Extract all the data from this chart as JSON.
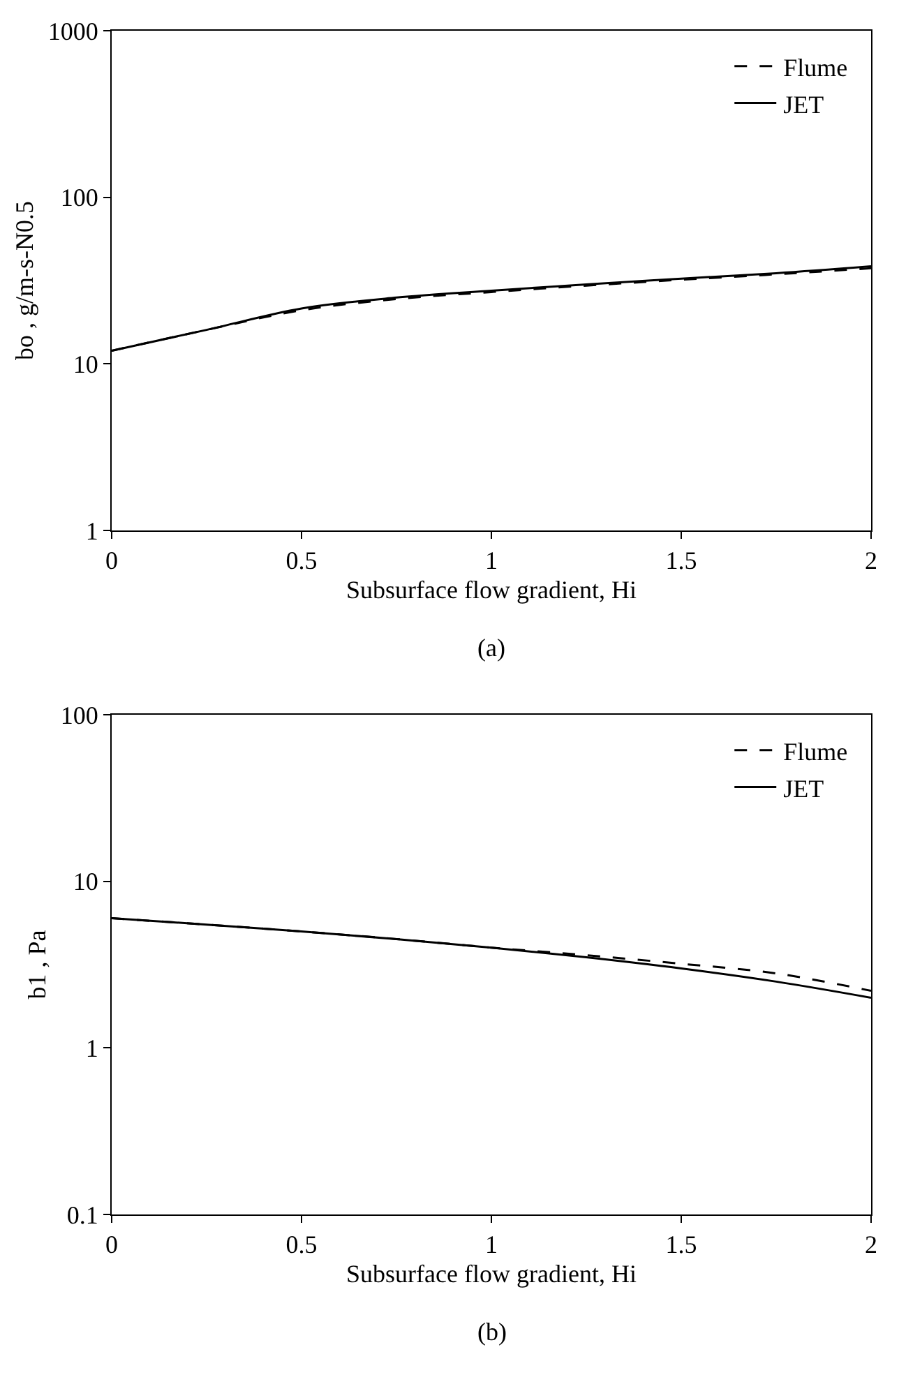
{
  "chart_data": [
    {
      "type": "line",
      "xlabel": "Subsurface flow gradient, Hi",
      "ylabel": "bo , g/m-s-N0.5",
      "annotations": [
        "(a)"
      ],
      "log": true,
      "grid": false,
      "legend": "top right",
      "xlim": [
        0,
        2
      ],
      "xticks": [
        0,
        0.5,
        1,
        1.5,
        2
      ],
      "ylim": [
        1,
        1000
      ],
      "yticks": [
        1,
        10,
        100,
        1000
      ],
      "x": [
        0,
        0.25,
        0.5,
        0.75,
        1,
        1.25,
        1.5,
        1.75,
        2
      ],
      "series": [
        {
          "name": "Flume",
          "color": "#000000",
          "line_style": "dashed",
          "values": [
            12,
            16,
            21,
            24.5,
            27,
            29.5,
            32,
            34.5,
            37.5
          ]
        },
        {
          "name": "JET",
          "color": "#000000",
          "line_style": "solid",
          "values": [
            12,
            16,
            21.5,
            25,
            27.5,
            30,
            32.5,
            35,
            38.5
          ]
        }
      ]
    },
    {
      "type": "line",
      "xlabel": "Subsurface flow gradient, Hi",
      "ylabel": "b1 , Pa",
      "annotations": [
        "(b)"
      ],
      "log": true,
      "grid": false,
      "legend": "top right",
      "xlim": [
        0,
        2
      ],
      "xticks": [
        0,
        0.5,
        1,
        1.5,
        2
      ],
      "ylim": [
        0.1,
        100
      ],
      "yticks": [
        0.1,
        1,
        10,
        100
      ],
      "x": [
        0,
        0.25,
        0.5,
        0.75,
        1,
        1.25,
        1.5,
        1.75,
        2
      ],
      "series": [
        {
          "name": "Flume",
          "color": "#000000",
          "line_style": "dashed",
          "values": [
            6,
            5.5,
            5,
            4.5,
            4,
            3.6,
            3.2,
            2.8,
            2.2
          ]
        },
        {
          "name": "JET",
          "color": "#000000",
          "line_style": "solid",
          "values": [
            6,
            5.5,
            5,
            4.5,
            4,
            3.5,
            3,
            2.5,
            2
          ]
        }
      ]
    }
  ]
}
